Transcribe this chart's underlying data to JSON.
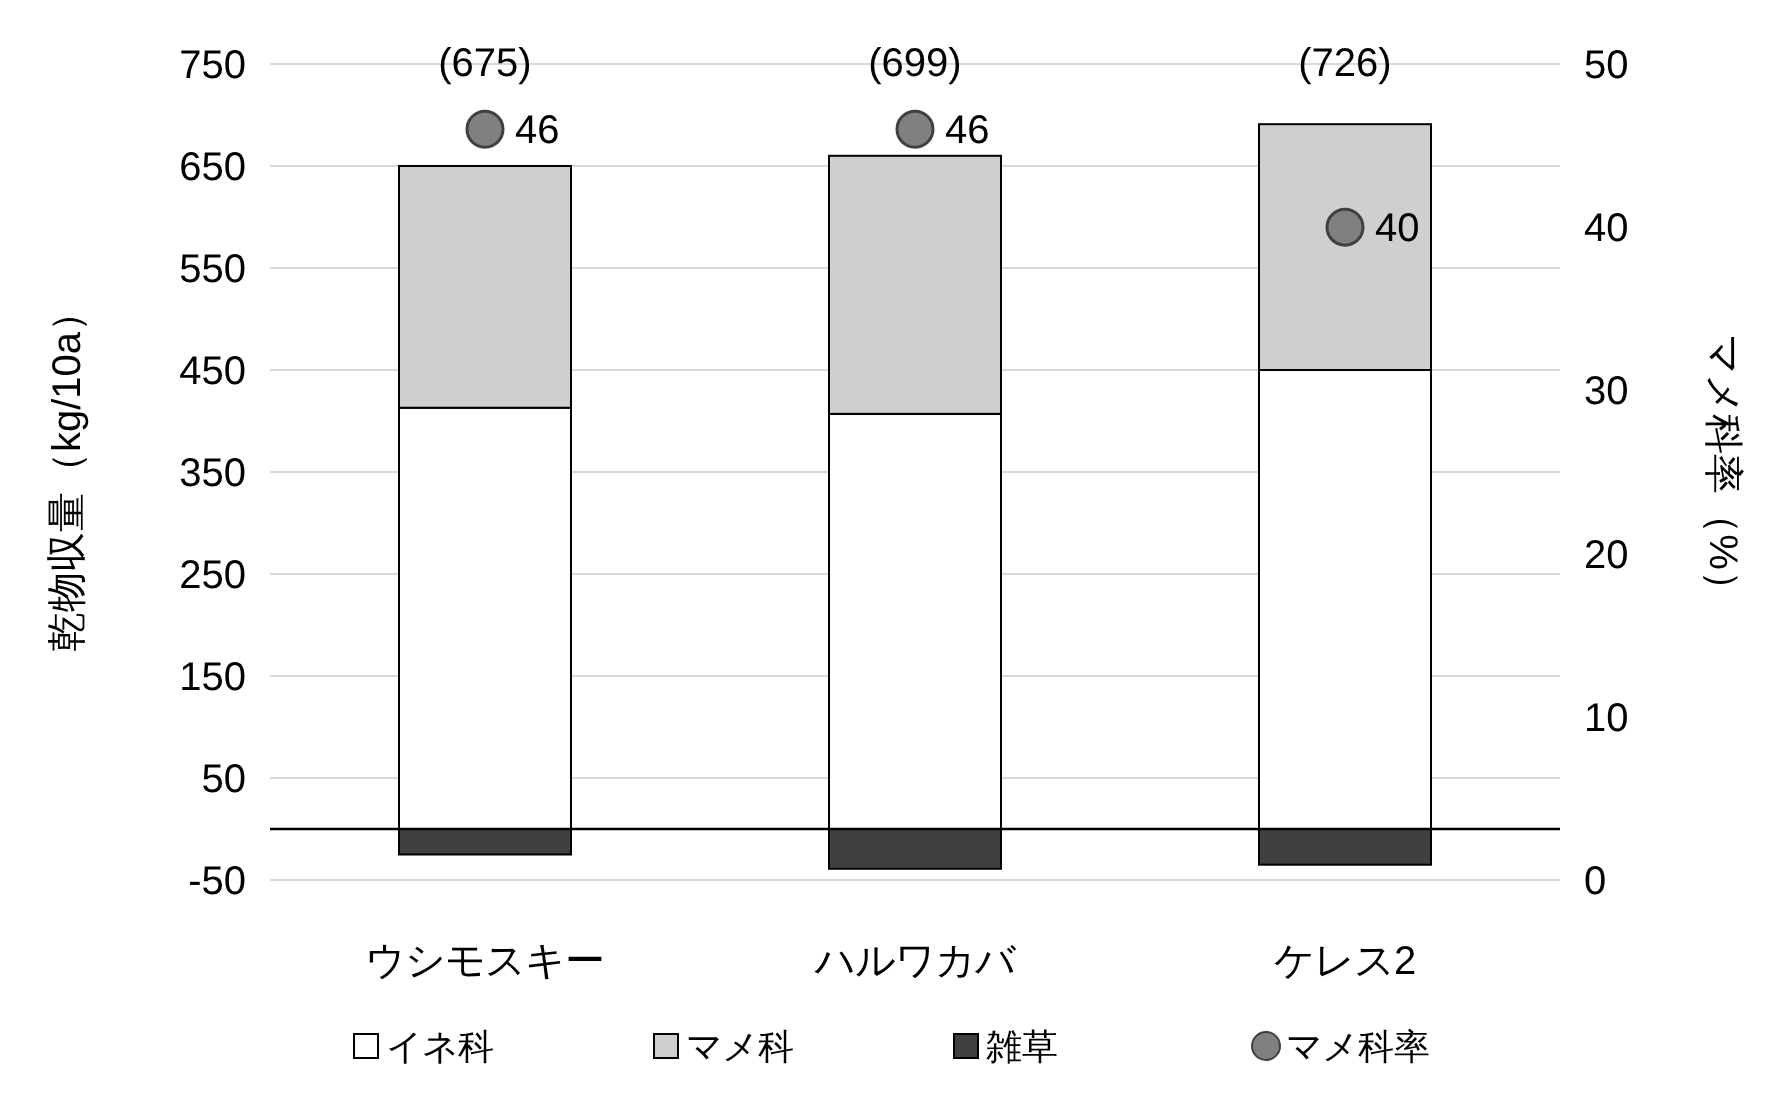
{
  "chart_data": {
    "type": "bar",
    "stacked": true,
    "categories": [
      "ウシモスキー",
      "ハルワカバ",
      "ケレス2"
    ],
    "ylabel": "乾物収量（kg/10a）",
    "y2label": "マメ科率（%）",
    "ylim": [
      -50,
      750
    ],
    "yticks": [
      -50,
      50,
      150,
      250,
      350,
      450,
      550,
      650,
      750
    ],
    "y2lim": [
      0,
      50
    ],
    "y2ticks": [
      0,
      10,
      20,
      30,
      40,
      50
    ],
    "grid": "y",
    "legend": "bottom",
    "annotations": [
      "(675)",
      "(699)",
      "(726)"
    ],
    "series": [
      {
        "name": "イネ科",
        "color": "#ffffff",
        "values": [
          413,
          407,
          450
        ]
      },
      {
        "name": "マメ科",
        "color": "#d0cece",
        "values": [
          237,
          253,
          241
        ]
      },
      {
        "name": "雑草",
        "color": "#404040",
        "values": [
          -25,
          -39,
          -35
        ]
      },
      {
        "name": "マメ科率",
        "type": "scatter",
        "axis": "y2",
        "color": "#808080",
        "marker": "circle",
        "values": [
          46,
          46,
          40
        ],
        "value_labels": [
          "46",
          "46",
          "40"
        ]
      }
    ]
  }
}
